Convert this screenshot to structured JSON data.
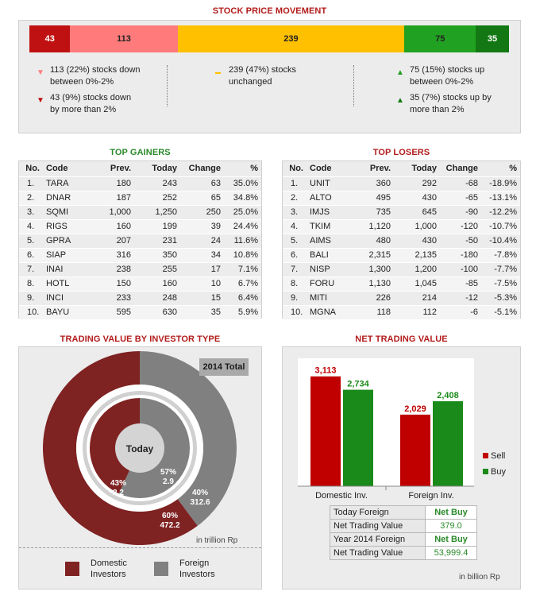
{
  "stock_price_movement": {
    "title": "STOCK PRICE MOVEMENT",
    "segments": [
      {
        "label": "43",
        "value": 43,
        "color": "#bf1111"
      },
      {
        "label": "113",
        "value": 113,
        "color": "#ff7b7b"
      },
      {
        "label": "239",
        "value": 239,
        "color": "#ffc000"
      },
      {
        "label": "75",
        "value": 75,
        "color": "#21a121"
      },
      {
        "label": "35",
        "value": 35,
        "color": "#137813"
      }
    ],
    "legend": [
      {
        "marker": "▼",
        "color": "#ff7b7b",
        "text": "113 (22%) stocks down between 0%-2%"
      },
      {
        "marker": "▼",
        "color": "#bf1111",
        "text": "43 (9%) stocks down by more than 2%"
      },
      {
        "marker": "▬",
        "color": "#ffc000",
        "text": "239 (47%) stocks unchanged"
      },
      {
        "marker": "▲",
        "color": "#21a121",
        "text": "75 (15%) stocks up between 0%-2%"
      },
      {
        "marker": "▲",
        "color": "#137813",
        "text": "35 (7%) stocks up by more than 2%"
      }
    ]
  },
  "top_gainers": {
    "title": "TOP GAINERS",
    "headers": [
      "No.",
      "Code",
      "Prev.",
      "Today",
      "Change",
      "%"
    ],
    "rows": [
      [
        "1.",
        "TARA",
        "180",
        "243",
        "63",
        "35.0%"
      ],
      [
        "2.",
        "DNAR",
        "187",
        "252",
        "65",
        "34.8%"
      ],
      [
        "3.",
        "SQMI",
        "1,000",
        "1,250",
        "250",
        "25.0%"
      ],
      [
        "4.",
        "RIGS",
        "160",
        "199",
        "39",
        "24.4%"
      ],
      [
        "5.",
        "GPRA",
        "207",
        "231",
        "24",
        "11.6%"
      ],
      [
        "6.",
        "SIAP",
        "316",
        "350",
        "34",
        "10.8%"
      ],
      [
        "7.",
        "INAI",
        "238",
        "255",
        "17",
        "7.1%"
      ],
      [
        "8.",
        "HOTL",
        "150",
        "160",
        "10",
        "6.7%"
      ],
      [
        "9.",
        "INCI",
        "233",
        "248",
        "15",
        "6.4%"
      ],
      [
        "10.",
        "BAYU",
        "595",
        "630",
        "35",
        "5.9%"
      ]
    ]
  },
  "top_losers": {
    "title": "TOP LOSERS",
    "headers": [
      "No.",
      "Code",
      "Prev.",
      "Today",
      "Change",
      "%"
    ],
    "rows": [
      [
        "1.",
        "UNIT",
        "360",
        "292",
        "-68",
        "-18.9%"
      ],
      [
        "2.",
        "ALTO",
        "495",
        "430",
        "-65",
        "-13.1%"
      ],
      [
        "3.",
        "IMJS",
        "735",
        "645",
        "-90",
        "-12.2%"
      ],
      [
        "4.",
        "TKIM",
        "1,120",
        "1,000",
        "-120",
        "-10.7%"
      ],
      [
        "5.",
        "AIMS",
        "480",
        "430",
        "-50",
        "-10.4%"
      ],
      [
        "6.",
        "BALI",
        "2,315",
        "2,135",
        "-180",
        "-7.8%"
      ],
      [
        "7.",
        "NISP",
        "1,300",
        "1,200",
        "-100",
        "-7.7%"
      ],
      [
        "8.",
        "FORU",
        "1,130",
        "1,045",
        "-85",
        "-7.5%"
      ],
      [
        "9.",
        "MITI",
        "226",
        "214",
        "-12",
        "-5.3%"
      ],
      [
        "10.",
        "MGNA",
        "118",
        "112",
        "-6",
        "-5.1%"
      ]
    ]
  },
  "trading_value": {
    "title": "TRADING VALUE BY INVESTOR TYPE",
    "total_label": "2014 Total",
    "center_label": "Today",
    "unit_note": "in trillion Rp",
    "outer_labels": [
      {
        "pct": "60%",
        "val": "472.2"
      },
      {
        "pct": "40%",
        "val": "312.6"
      }
    ],
    "inner_labels": [
      {
        "pct": "43%",
        "val": "2.2"
      },
      {
        "pct": "57%",
        "val": "2.9"
      }
    ],
    "legend": [
      {
        "label": "Domestic Investors",
        "color": "#7f2222"
      },
      {
        "label": "Foreign Investors",
        "color": "#7f7f7f"
      }
    ],
    "colors": {
      "domestic": "#7f2222",
      "foreign": "#808080"
    }
  },
  "net_trading": {
    "title": "NET TRADING VALUE",
    "unit_note": "in billion Rp",
    "legend": [
      {
        "label": "Sell",
        "color": "#c00000"
      },
      {
        "label": "Buy",
        "color": "#1a8a1a"
      }
    ],
    "table": [
      {
        "label": "Today Foreign",
        "value": "Net Buy"
      },
      {
        "label": "Net Trading Value",
        "value": "379.0"
      },
      {
        "label": "Year 2014 Foreign",
        "value": "Net Buy"
      },
      {
        "label": "Net Trading Value",
        "value": "53,999.4"
      }
    ]
  },
  "chart_data": [
    {
      "type": "pie",
      "title": "TRADING VALUE BY INVESTOR TYPE",
      "series": [
        {
          "name": "2014 Total",
          "labels": [
            "Domestic Investors",
            "Foreign Investors"
          ],
          "values": [
            472.2,
            312.6
          ],
          "percent": [
            60,
            40
          ]
        },
        {
          "name": "Today",
          "labels": [
            "Domestic Investors",
            "Foreign Investors"
          ],
          "values": [
            2.2,
            2.9
          ],
          "percent": [
            43,
            57
          ]
        }
      ],
      "legend": "bottom"
    },
    {
      "type": "bar",
      "title": "NET TRADING VALUE",
      "categories": [
        "Domestic Inv.",
        "Foreign Inv."
      ],
      "series": [
        {
          "name": "Sell",
          "values": [
            3113,
            2029
          ],
          "labels": [
            "3,113",
            "2,029"
          ]
        },
        {
          "name": "Buy",
          "values": [
            2734,
            2408
          ],
          "labels": [
            "2,734",
            "2,408"
          ]
        }
      ],
      "ylim": [
        0,
        3400
      ],
      "legend": "right"
    }
  ]
}
